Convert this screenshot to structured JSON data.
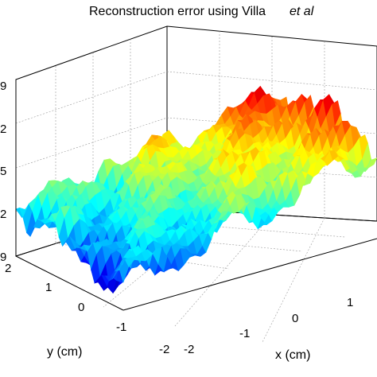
{
  "chart_data": {
    "type": "surface",
    "title": "Reconstruction error using Villa",
    "title_suffix": "et al",
    "xlabel": "x (cm)",
    "ylabel": "y (cm)",
    "zlabel": "",
    "x_ticks": [
      "-2",
      "-1",
      "0",
      "1"
    ],
    "y_ticks": [
      "-2",
      "-1",
      "0",
      "1",
      "2"
    ],
    "z_ticks": [
      "9",
      "2",
      "5",
      "2",
      "9"
    ],
    "xlim": [
      -2,
      2
    ],
    "ylim": [
      -2,
      2
    ],
    "colormap": "jet",
    "grid": true,
    "colors": {
      "low": "#00008f",
      "mid": "#40ffbf",
      "high": "#ff3000"
    }
  }
}
